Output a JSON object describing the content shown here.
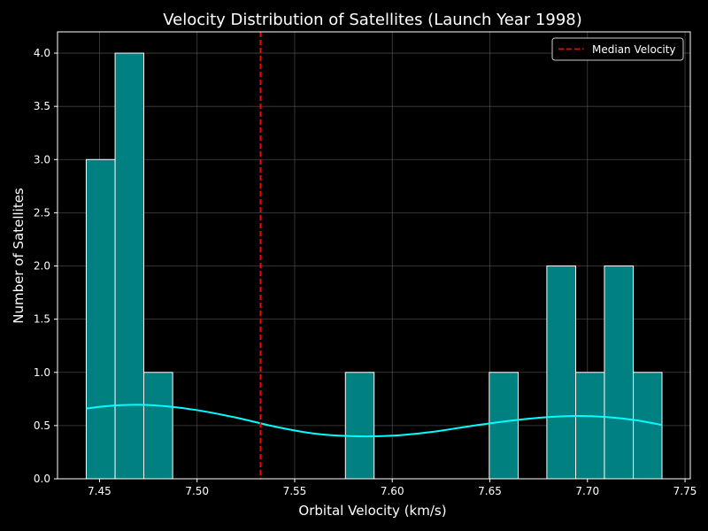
{
  "chart_data": {
    "type": "bar",
    "title": "Velocity Distribution of Satellites (Launch Year 1998)",
    "xlabel": "Orbital Velocity (km/s)",
    "ylabel": "Number of Satellites",
    "xlim": [
      7.4285,
      7.7527
    ],
    "ylim": [
      0,
      4.2
    ],
    "xticks": [
      "7.45",
      "7.50",
      "7.55",
      "7.60",
      "7.65",
      "7.70",
      "7.75"
    ],
    "yticks": [
      "0.0",
      "0.5",
      "1.0",
      "1.5",
      "2.0",
      "2.5",
      "3.0",
      "3.5",
      "4.0"
    ],
    "grid": true,
    "bins": [
      {
        "x0": 7.4432,
        "x1": 7.458,
        "count": 3
      },
      {
        "x0": 7.458,
        "x1": 7.4727,
        "count": 4
      },
      {
        "x0": 7.4727,
        "x1": 7.4875,
        "count": 1
      },
      {
        "x0": 7.4875,
        "x1": 7.5022,
        "count": 0
      },
      {
        "x0": 7.5022,
        "x1": 7.517,
        "count": 0
      },
      {
        "x0": 7.517,
        "x1": 7.5317,
        "count": 0
      },
      {
        "x0": 7.5317,
        "x1": 7.5465,
        "count": 0
      },
      {
        "x0": 7.5465,
        "x1": 7.5612,
        "count": 0
      },
      {
        "x0": 7.5612,
        "x1": 7.576,
        "count": 0
      },
      {
        "x0": 7.576,
        "x1": 7.5907,
        "count": 1
      },
      {
        "x0": 7.5907,
        "x1": 7.6055,
        "count": 0
      },
      {
        "x0": 7.6055,
        "x1": 7.6202,
        "count": 0
      },
      {
        "x0": 7.6202,
        "x1": 7.635,
        "count": 0
      },
      {
        "x0": 7.635,
        "x1": 7.6497,
        "count": 0
      },
      {
        "x0": 7.6497,
        "x1": 7.6645,
        "count": 1
      },
      {
        "x0": 7.6645,
        "x1": 7.6792,
        "count": 0
      },
      {
        "x0": 7.6792,
        "x1": 7.694,
        "count": 2
      },
      {
        "x0": 7.694,
        "x1": 7.7087,
        "count": 1
      },
      {
        "x0": 7.7087,
        "x1": 7.7235,
        "count": 2
      },
      {
        "x0": 7.7235,
        "x1": 7.7382,
        "count": 1
      }
    ],
    "kde": {
      "x": [
        7.4432,
        7.455,
        7.47,
        7.485,
        7.5,
        7.52,
        7.54,
        7.56,
        7.58,
        7.6,
        7.62,
        7.64,
        7.66,
        7.68,
        7.695,
        7.71,
        7.725,
        7.7382
      ],
      "y": [
        0.66,
        0.685,
        0.695,
        0.68,
        0.645,
        0.575,
        0.49,
        0.425,
        0.4,
        0.405,
        0.44,
        0.495,
        0.545,
        0.58,
        0.59,
        0.58,
        0.55,
        0.505
      ]
    },
    "median": 7.5325,
    "legend": {
      "position": "top-right",
      "entries": [
        "Median Velocity"
      ]
    },
    "colors": {
      "background": "#000000",
      "bar_fill": "#008080",
      "bar_edge": "#ffffff",
      "kde_line": "#00ffff",
      "median_line": "#ff0000",
      "axes": "#ffffff",
      "grid": "#555555"
    }
  }
}
